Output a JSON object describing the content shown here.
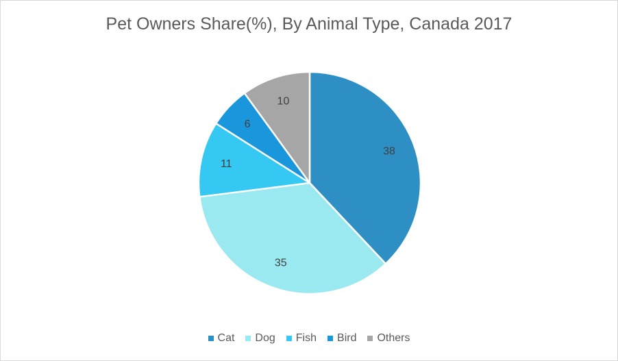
{
  "chart_data": {
    "type": "pie",
    "title": "Pet Owners Share(%), By Animal Type, Canada 2017",
    "categories": [
      "Cat",
      "Dog",
      "Fish",
      "Bird",
      "Others"
    ],
    "values": [
      38,
      35,
      11,
      6,
      10
    ],
    "colors": [
      "#2e8fc4",
      "#9ae9f0",
      "#34c8f2",
      "#1a96dc",
      "#a6a6a6"
    ],
    "data_labels": [
      "38",
      "35",
      "11",
      "6",
      "10"
    ],
    "legend": "bottom",
    "start_angle": "12 o'clock",
    "direction": "clockwise"
  }
}
